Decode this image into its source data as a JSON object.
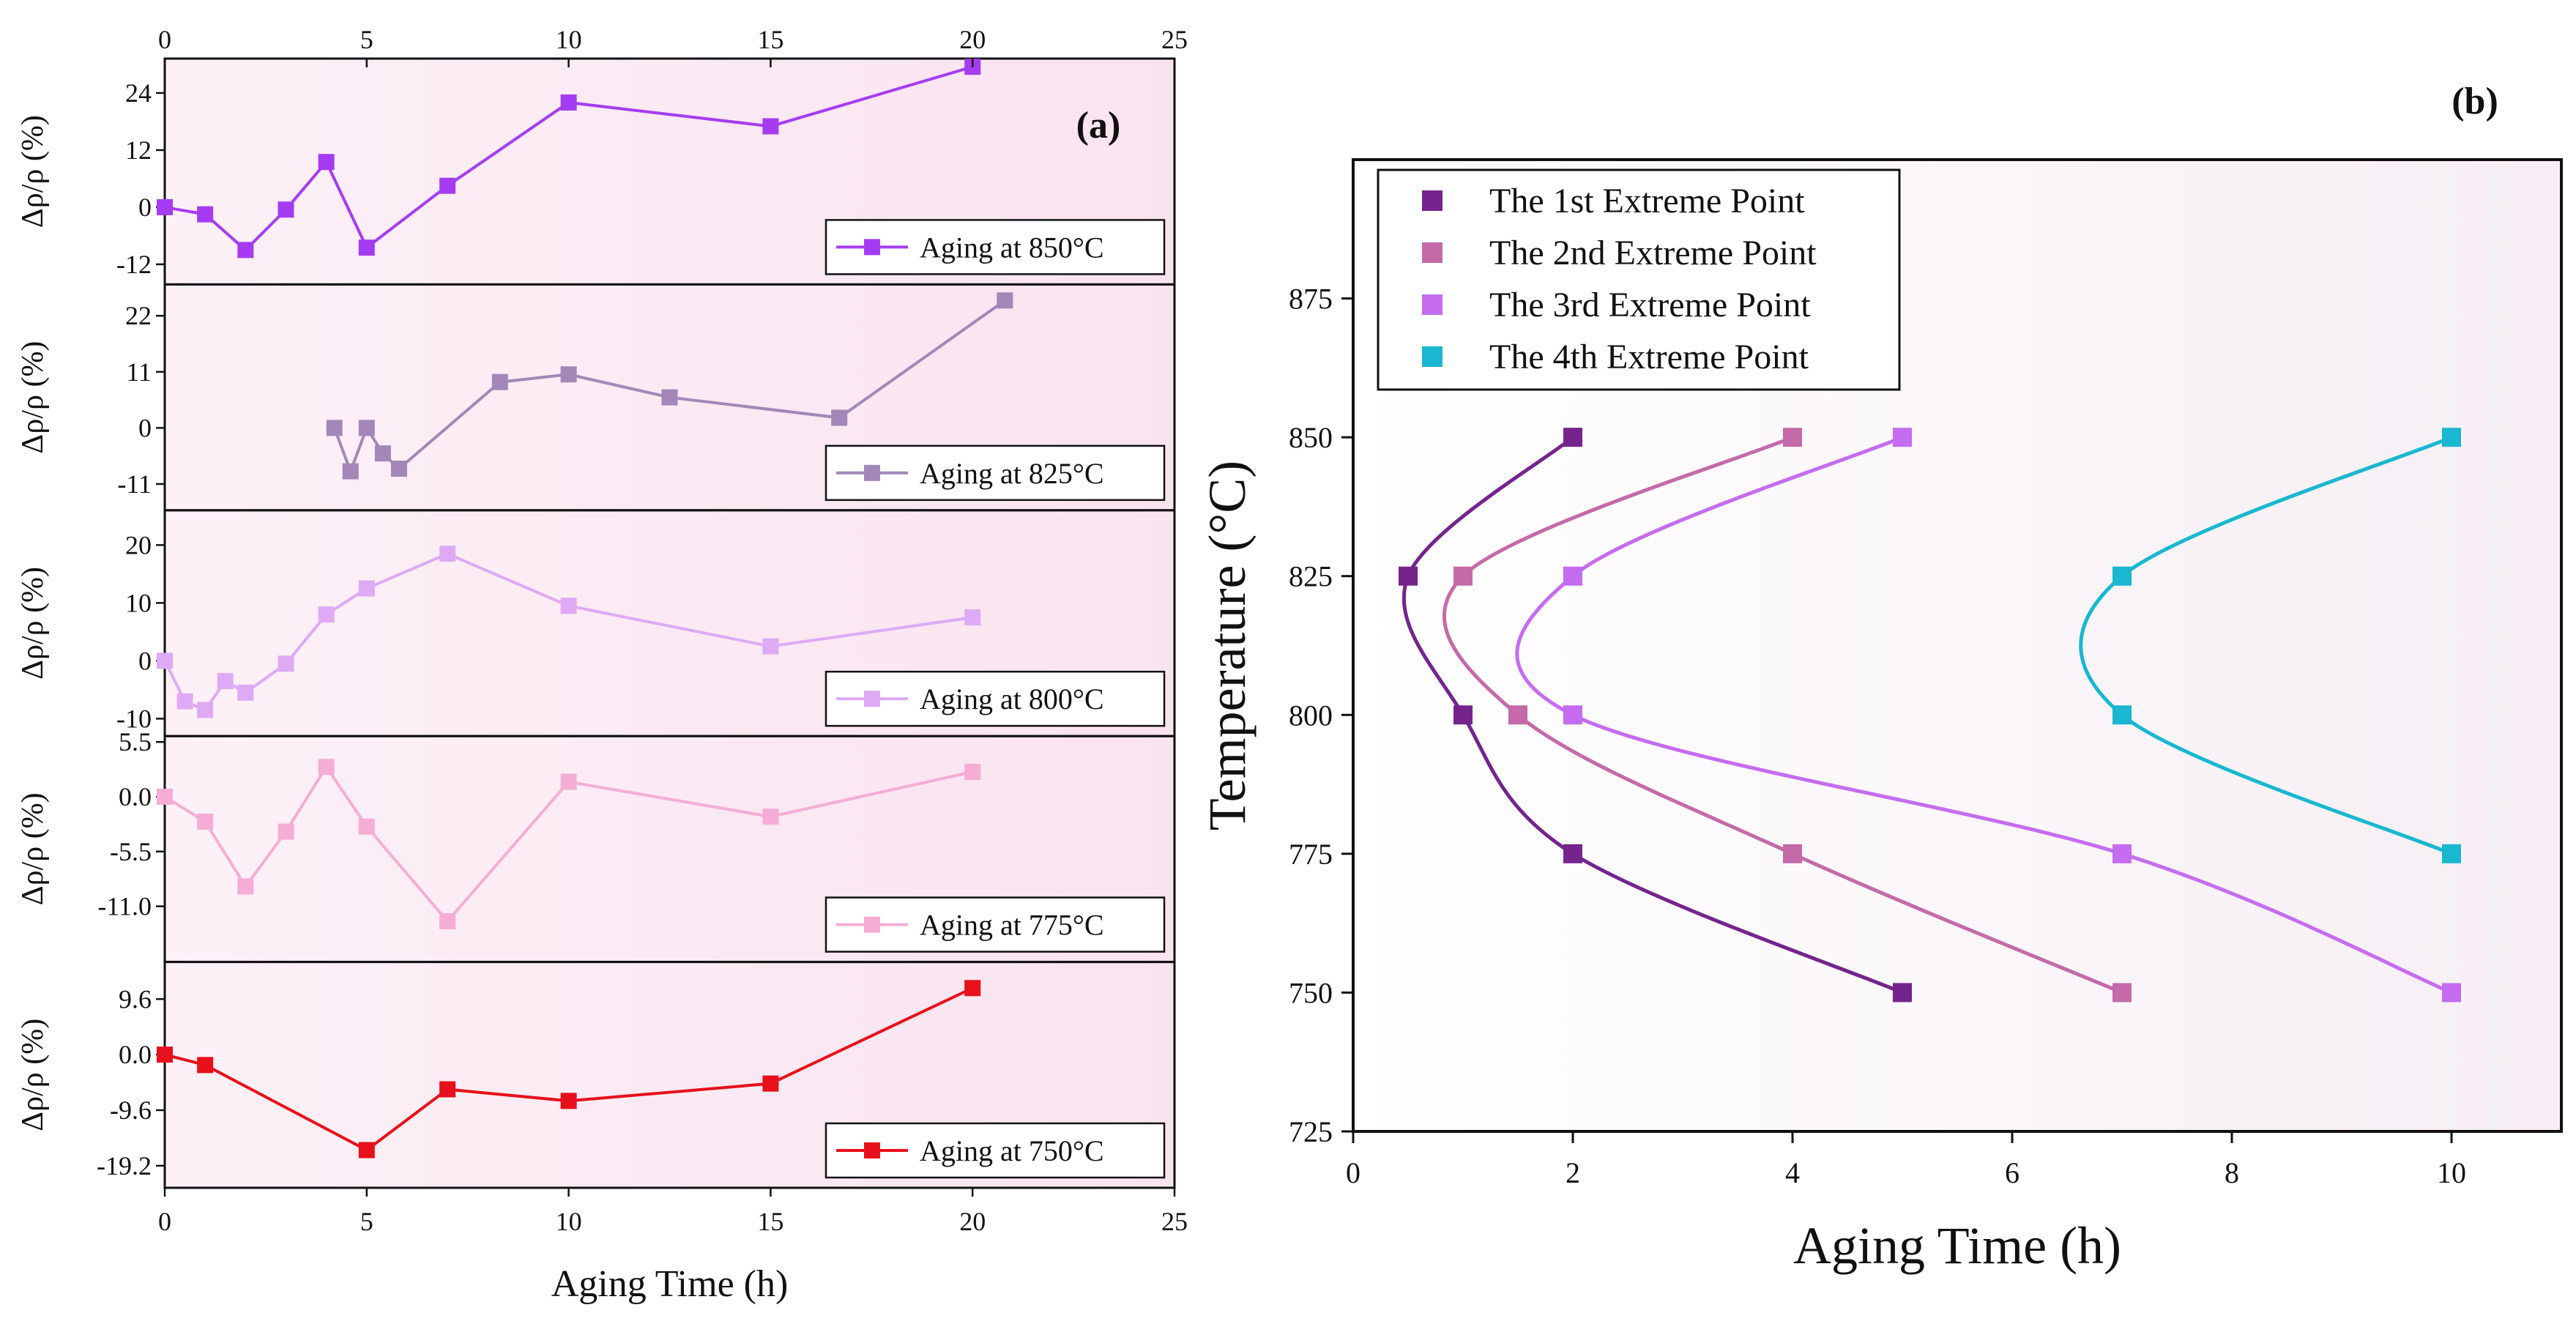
{
  "chart_data": [
    {
      "id": "a",
      "panel_label": "(a)",
      "type": "line",
      "xlabel": "Aging Time (h)",
      "xlim": [
        0,
        25
      ],
      "xticks": [
        "0",
        "5",
        "10",
        "15",
        "20",
        "25"
      ],
      "ylabel": "Δρ/ρ (%)",
      "subplots": [
        {
          "legend": "Aging at 850°C",
          "color": "#a63cf2",
          "ylim": [
            -15,
            30
          ],
          "yticks": [
            24,
            12,
            0,
            -12
          ],
          "ytick_labels": [
            "24",
            "12",
            "0",
            "-12"
          ],
          "x": [
            0,
            1,
            2,
            3,
            4,
            5,
            7,
            10,
            15,
            20
          ],
          "y": [
            0,
            -1.5,
            -9,
            -0.5,
            9.5,
            -8.5,
            4.5,
            22,
            17,
            29.5
          ]
        },
        {
          "legend": "Aging at 825°C",
          "color": "#a287b8",
          "ylim": [
            -15,
            27
          ],
          "yticks": [
            22,
            11,
            0,
            -11
          ],
          "ytick_labels": [
            "22",
            "11",
            "0",
            "-11"
          ],
          "x": [
            4.2,
            4.6,
            5,
            5.4,
            5.8,
            8.3,
            10,
            12.5,
            16.7,
            20.8
          ],
          "y": [
            0,
            -8.5,
            0,
            -5,
            -8,
            9,
            10.5,
            6,
            2,
            25
          ]
        },
        {
          "legend": "Aging at 800°C",
          "color": "#deaaf6",
          "ylim": [
            -12,
            25
          ],
          "yticks": [
            20,
            10,
            0,
            -10
          ],
          "ytick_labels": [
            "20",
            "10",
            "0",
            "-10"
          ],
          "x": [
            0,
            0.5,
            1,
            1.5,
            2,
            3,
            4,
            5,
            7,
            10,
            15,
            20
          ],
          "y": [
            0,
            -7,
            -8.5,
            -3.5,
            -5.5,
            -0.5,
            8,
            12.5,
            18.5,
            9.5,
            2.5,
            7.5
          ]
        },
        {
          "legend": "Aging at 775°C",
          "color": "#f5add5",
          "ylim": [
            -16,
            5.5
          ],
          "yticks": [
            5.5,
            0,
            -5.5,
            -11
          ],
          "ytick_labels": [
            "5.5",
            "0.0",
            "-5.5",
            "-11.0"
          ],
          "x": [
            0,
            1,
            2,
            3,
            4,
            5,
            7,
            10,
            15,
            20
          ],
          "y": [
            0,
            -2.5,
            -9,
            -3.5,
            3,
            -3,
            -12.5,
            1.5,
            -2,
            2.5
          ]
        },
        {
          "legend": "Aging at 750°C",
          "color": "#e8101a",
          "ylim": [
            -22,
            15
          ],
          "yticks": [
            9.6,
            0,
            -9.6,
            -19.2
          ],
          "ytick_labels": [
            "9.6",
            "0.0",
            "-9.6",
            "-19.2"
          ],
          "x": [
            0,
            1,
            5,
            7,
            10,
            15,
            20
          ],
          "y": [
            0,
            -1.8,
            -16.5,
            -6,
            -8,
            -5,
            11.5
          ]
        }
      ]
    },
    {
      "id": "b",
      "panel_label": "(b)",
      "type": "scatter",
      "xlabel": "Aging Time (h)",
      "ylabel": "Temperature (°C)",
      "xlim": [
        0,
        11
      ],
      "ylim": [
        725,
        900
      ],
      "xticks": [
        "0",
        "2",
        "4",
        "6",
        "8",
        "10"
      ],
      "yticks": [
        "725",
        "750",
        "775",
        "800",
        "825",
        "850",
        "875"
      ],
      "series": [
        {
          "name": "The 1st Extreme Point",
          "color": "#74248c",
          "x": [
            2,
            0.5,
            1,
            2,
            5
          ],
          "y": [
            850,
            825,
            800,
            775,
            750
          ]
        },
        {
          "name": "The 2nd Extreme Point",
          "color": "#c46aa8",
          "x": [
            4,
            1,
            1.5,
            4,
            7
          ],
          "y": [
            850,
            825,
            800,
            775,
            750
          ]
        },
        {
          "name": "The 3rd Extreme Point",
          "color": "#c56cf0",
          "x": [
            5,
            2,
            2,
            7,
            10
          ],
          "y": [
            850,
            825,
            800,
            775,
            750
          ]
        },
        {
          "name": "The 4th Extreme Point",
          "color": "#19b7d0",
          "x": [
            10,
            7,
            7,
            10
          ],
          "y": [
            850,
            825,
            800,
            775
          ]
        }
      ]
    }
  ]
}
